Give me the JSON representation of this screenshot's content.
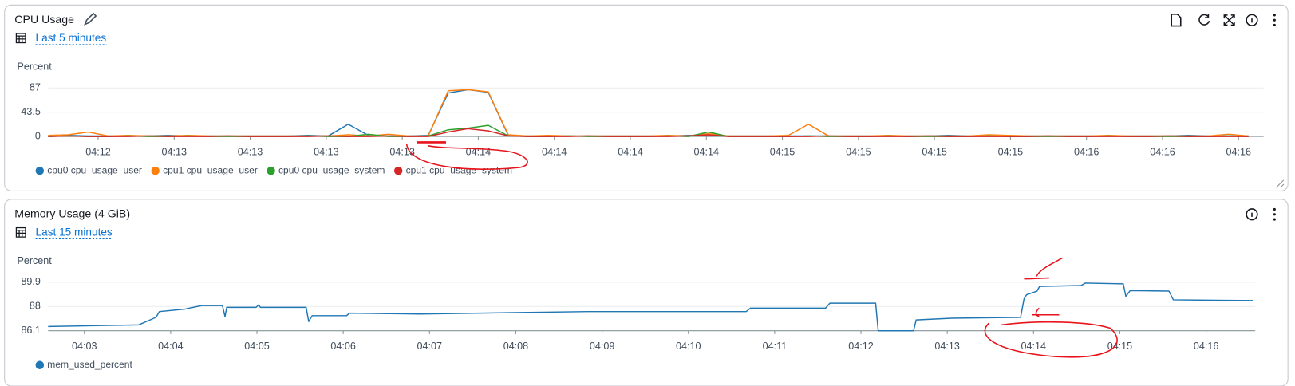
{
  "chart_data": [
    {
      "type": "line",
      "title": "CPU Usage",
      "subtitle": "Last 5 minutes",
      "ylabel": "Percent",
      "x": [
        0,
        5,
        10,
        15,
        20,
        25,
        30,
        35,
        40,
        45,
        50,
        55,
        60,
        65,
        70,
        75,
        80,
        85,
        90,
        95,
        100,
        105,
        110,
        115,
        120,
        125,
        130,
        135,
        140,
        145,
        150,
        155,
        160,
        165,
        170,
        175,
        180,
        185,
        190,
        195,
        200,
        205,
        210,
        215,
        220,
        225,
        230,
        235,
        240,
        245,
        250,
        255,
        260,
        265,
        270,
        275,
        280,
        285,
        290,
        295,
        300
      ],
      "series": [
        {
          "name": "cpu0 cpu_usage_user",
          "color": "#1f77b4",
          "values": [
            1,
            2,
            1,
            1,
            1,
            1,
            2,
            1,
            1,
            1,
            1,
            1,
            1,
            2,
            1,
            22,
            2,
            1,
            1,
            2,
            78,
            84,
            79,
            2,
            1,
            1,
            1,
            1,
            1,
            1,
            1,
            1,
            2,
            1,
            1,
            1,
            1,
            1,
            1,
            1,
            1,
            1,
            1,
            1,
            1,
            2,
            1,
            1,
            1,
            1,
            1,
            1,
            1,
            1,
            1,
            1,
            1,
            2,
            1,
            1,
            1
          ]
        },
        {
          "name": "cpu1 cpu_usage_user",
          "color": "#ff7f0e",
          "values": [
            2,
            3,
            8,
            1,
            2,
            1,
            1,
            2,
            1,
            1,
            1,
            1,
            1,
            1,
            1,
            3,
            1,
            4,
            1,
            1,
            82,
            84,
            80,
            3,
            1,
            2,
            1,
            1,
            1,
            1,
            1,
            2,
            1,
            5,
            1,
            1,
            1,
            2,
            22,
            1,
            1,
            1,
            2,
            1,
            1,
            1,
            1,
            3,
            2,
            1,
            1,
            1,
            1,
            2,
            1,
            1,
            1,
            1,
            1,
            4,
            1
          ]
        },
        {
          "name": "cpu0 cpu_usage_system",
          "color": "#2ca02c",
          "values": [
            0,
            1,
            0,
            0,
            1,
            0,
            0,
            1,
            0,
            0,
            0,
            0,
            0,
            1,
            0,
            0,
            4,
            0,
            0,
            1,
            12,
            15,
            20,
            1,
            0,
            0,
            1,
            0,
            0,
            0,
            0,
            1,
            0,
            8,
            0,
            0,
            0,
            0,
            1,
            0,
            0,
            0,
            1,
            0,
            0,
            0,
            0,
            1,
            0,
            0,
            0,
            0,
            0,
            1,
            0,
            0,
            0,
            0,
            0,
            1,
            0
          ]
        },
        {
          "name": "cpu1 cpu_usage_system",
          "color": "#d62728",
          "values": [
            0,
            1,
            0,
            0,
            0,
            1,
            0,
            0,
            0,
            1,
            0,
            0,
            0,
            0,
            1,
            0,
            0,
            1,
            0,
            0,
            8,
            14,
            10,
            1,
            0,
            0,
            0,
            1,
            0,
            0,
            0,
            0,
            1,
            3,
            0,
            0,
            0,
            0,
            0,
            1,
            0,
            0,
            0,
            0,
            1,
            0,
            0,
            0,
            0,
            0,
            1,
            0,
            0,
            0,
            0,
            0,
            1,
            0,
            0,
            0,
            0
          ]
        }
      ],
      "xlim": [
        0,
        300
      ],
      "xticks": [
        {
          "value": 12.5,
          "label": "04:12"
        },
        {
          "value": 31.5,
          "label": "04:13"
        },
        {
          "value": 50.5,
          "label": "04:13"
        },
        {
          "value": 69.5,
          "label": "04:13"
        },
        {
          "value": 88.5,
          "label": "04:13"
        },
        {
          "value": 107.5,
          "label": "04:14"
        },
        {
          "value": 126.5,
          "label": "04:14"
        },
        {
          "value": 145.5,
          "label": "04:14"
        },
        {
          "value": 164.5,
          "label": "04:14"
        },
        {
          "value": 183.5,
          "label": "04:15"
        },
        {
          "value": 202.5,
          "label": "04:15"
        },
        {
          "value": 221.5,
          "label": "04:15"
        },
        {
          "value": 240.5,
          "label": "04:15"
        },
        {
          "value": 259.5,
          "label": "04:16"
        },
        {
          "value": 278.5,
          "label": "04:16"
        },
        {
          "value": 297.5,
          "label": "04:16"
        }
      ],
      "ylim": [
        0,
        87
      ],
      "yticks": [
        0,
        43.5,
        87
      ],
      "grid": true
    },
    {
      "type": "line",
      "title": "Memory Usage (4 GiB)",
      "subtitle": "Last 15 minutes",
      "ylabel": "Percent",
      "x": [
        2.58,
        3.63,
        3.83,
        3.87,
        4.17,
        4.36,
        4.6,
        4.63,
        4.65,
        4.99,
        5.02,
        5.04,
        5.57,
        5.6,
        5.64,
        6.04,
        6.07,
        6.88,
        8.83,
        10.67,
        10.72,
        11.59,
        11.64,
        12.17,
        12.2,
        12.61,
        12.64,
        13.05,
        13.85,
        13.89,
        13.92,
        14.04,
        14.07,
        14.55,
        14.6,
        15.04,
        15.07,
        15.12,
        15.57,
        15.62,
        16.54
      ],
      "series": [
        {
          "name": "mem_used_percent",
          "color": "#1f77b4",
          "values": [
            86.43,
            86.56,
            87.15,
            87.6,
            87.8,
            88.07,
            88.07,
            87.21,
            87.93,
            87.93,
            88.13,
            87.93,
            87.93,
            86.82,
            87.28,
            87.28,
            87.48,
            87.41,
            87.6,
            87.6,
            87.87,
            87.87,
            88.26,
            88.26,
            86.1,
            86.1,
            86.95,
            87.08,
            87.15,
            88.59,
            88.92,
            89.2,
            89.57,
            89.64,
            89.83,
            89.77,
            88.79,
            89.24,
            89.2,
            88.52,
            88.46
          ]
        }
      ],
      "xlim": [
        2.58,
        16.56
      ],
      "xticks": [
        {
          "value": 3,
          "label": "04:03"
        },
        {
          "value": 4,
          "label": "04:04"
        },
        {
          "value": 5,
          "label": "04:05"
        },
        {
          "value": 6,
          "label": "04:06"
        },
        {
          "value": 7,
          "label": "04:07"
        },
        {
          "value": 8,
          "label": "04:08"
        },
        {
          "value": 9,
          "label": "04:09"
        },
        {
          "value": 10,
          "label": "04:10"
        },
        {
          "value": 11,
          "label": "04:11"
        },
        {
          "value": 12,
          "label": "04:12"
        },
        {
          "value": 13,
          "label": "04:13"
        },
        {
          "value": 14,
          "label": "04:14"
        },
        {
          "value": 15,
          "label": "04:15"
        },
        {
          "value": 16,
          "label": "04:16"
        }
      ],
      "ylim": [
        86.1,
        89.9
      ],
      "yticks": [
        86.1,
        88,
        89.9
      ],
      "grid": true
    }
  ]
}
